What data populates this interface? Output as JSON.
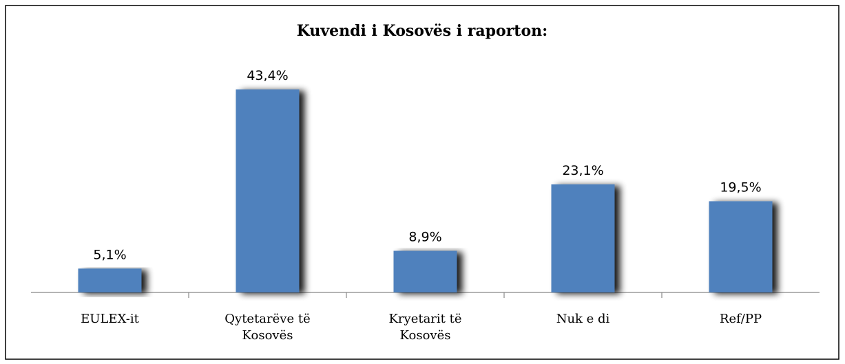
{
  "chart_data": {
    "type": "bar",
    "title": "Kuvendi i Kosovës i raporton:",
    "categories": [
      "EULEX-it",
      "Qytetarëve të Kosovës",
      "Kryetarit të Kosovës",
      "Nuk e di",
      "Ref/PP"
    ],
    "values": [
      5.1,
      43.4,
      8.9,
      23.1,
      19.5
    ],
    "value_labels": [
      "5,1%",
      "43,4%",
      "8,9%",
      "23,1%",
      "19,5%"
    ],
    "color": "#4f81bd"
  }
}
